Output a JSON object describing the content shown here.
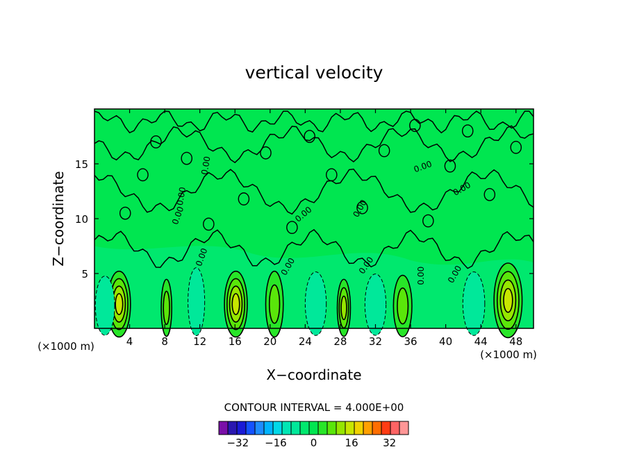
{
  "chart_data": {
    "type": "contour",
    "title": "vertical velocity",
    "xlabel": "X−coordinate",
    "ylabel": "Z−coordinate",
    "x_unit_left": "(×1000 m)",
    "x_unit_right": "(×1000 m)",
    "xlim": [
      0,
      50
    ],
    "ylim": [
      0,
      20
    ],
    "x_ticks": [
      4,
      8,
      12,
      16,
      20,
      24,
      28,
      32,
      36,
      40,
      44,
      48
    ],
    "y_ticks": [
      5,
      10,
      15
    ],
    "contour_interval_text": "CONTOUR INTERVAL = 4.000E+00",
    "contour_interval": 4,
    "zero_contour_label": "0.00",
    "colorbar": {
      "labels": [
        "−32",
        "−16",
        "0",
        "16",
        "32"
      ],
      "label_values": [
        -32,
        -16,
        0,
        16,
        32
      ],
      "levels": [
        -40,
        -36,
        -32,
        -28,
        -24,
        -20,
        -16,
        -12,
        -8,
        -4,
        0,
        4,
        8,
        12,
        16,
        20,
        24,
        28,
        32,
        36,
        40
      ],
      "colors": [
        "#7a0fa8",
        "#2a17b0",
        "#1a1ad6",
        "#1452ff",
        "#1e8cff",
        "#00b4ff",
        "#00d8e8",
        "#00e6b4",
        "#00e89a",
        "#00e86e",
        "#00e650",
        "#28e628",
        "#5ae60a",
        "#96e600",
        "#c8e600",
        "#f0d200",
        "#ffa000",
        "#ff6e00",
        "#ff3c14",
        "#ff6464",
        "#ff9696"
      ]
    },
    "cells": [
      {
        "x": 2.8,
        "z": 2.6,
        "w": 2.6,
        "kind": "pos",
        "peak": 14
      },
      {
        "x": 8.2,
        "z": 2.2,
        "w": 1.2,
        "kind": "pos",
        "peak": 6
      },
      {
        "x": 16.1,
        "z": 2.6,
        "w": 2.6,
        "kind": "pos",
        "peak": 14
      },
      {
        "x": 20.5,
        "z": 2.6,
        "w": 2.0,
        "kind": "pos",
        "peak": 8
      },
      {
        "x": 28.4,
        "z": 2.2,
        "w": 1.5,
        "kind": "pos",
        "peak": 12
      },
      {
        "x": 35.1,
        "z": 2.4,
        "w": 2.1,
        "kind": "pos",
        "peak": 8
      },
      {
        "x": 47.1,
        "z": 3.0,
        "w": 3.2,
        "kind": "pos",
        "peak": 16
      },
      {
        "x": 1.2,
        "z": 2.3,
        "w": 2.2,
        "kind": "neg",
        "peak": -4
      },
      {
        "x": 11.6,
        "z": 2.7,
        "w": 1.9,
        "kind": "neg",
        "peak": -4
      },
      {
        "x": 25.2,
        "z": 2.5,
        "w": 2.4,
        "kind": "neg",
        "peak": -4
      },
      {
        "x": 32.0,
        "z": 2.4,
        "w": 2.4,
        "kind": "neg",
        "peak": -4
      },
      {
        "x": 43.2,
        "z": 2.5,
        "w": 2.5,
        "kind": "neg",
        "peak": -4
      }
    ]
  }
}
